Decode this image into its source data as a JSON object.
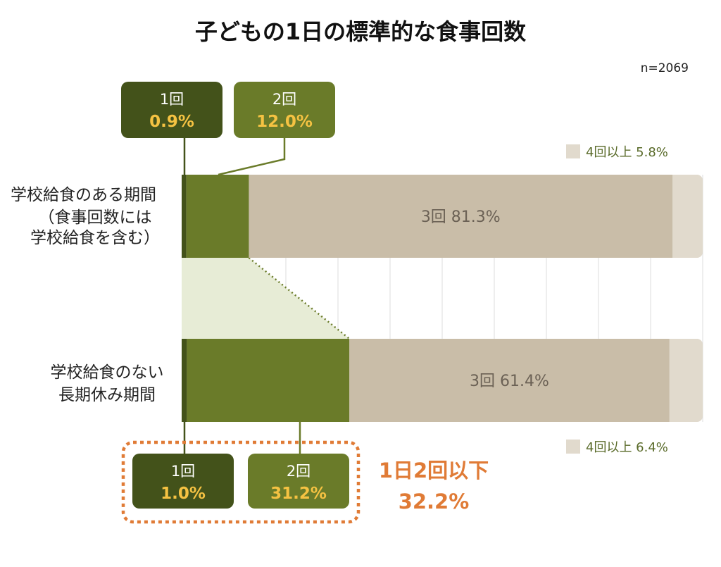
{
  "chart_data": {
    "type": "bar",
    "orientation": "horizontal",
    "stacked": true,
    "title": "子どもの1日の標準的な食事回数",
    "sample_size": "n=2069",
    "xlim": [
      0,
      100
    ],
    "grid": true,
    "categories": [
      [
        "学校給食のある期間",
        "（食事回数には",
        "学校給食を含む）"
      ],
      [
        "学校給食のない",
        "長期休み期間"
      ]
    ],
    "series": [
      {
        "name": "1回",
        "values": [
          0.9,
          1.0
        ],
        "color": "#43521a"
      },
      {
        "name": "2回",
        "values": [
          12.0,
          31.2
        ],
        "color": "#6a7b29"
      },
      {
        "name": "3回",
        "values": [
          81.3,
          61.4
        ],
        "color": "#c9bda8"
      },
      {
        "name": "4回以上",
        "values": [
          5.8,
          6.4
        ],
        "color": "#e1dacd"
      }
    ],
    "bar_labels": [
      "3回 81.3%",
      "3回 61.4%"
    ],
    "legend_labels": [
      "4回以上 5.8%",
      "4回以上 6.4%"
    ],
    "callouts": [
      {
        "cat": "1回",
        "value": "0.9%"
      },
      {
        "cat": "2回",
        "value": "12.0%"
      },
      {
        "cat": "1回",
        "value": "1.0%"
      },
      {
        "cat": "2回",
        "value": "31.2%"
      }
    ],
    "summary": {
      "line1": "1日2回以下",
      "line2": "32.2%"
    }
  },
  "colors": {
    "dark_green": "#43521a",
    "green": "#6a7b29",
    "beige": "#c9bda8",
    "light_beige": "#e1dacd",
    "highlight": "#f5c242",
    "accent_orange": "#e07b36",
    "band_fill": "#e7ecd6"
  }
}
